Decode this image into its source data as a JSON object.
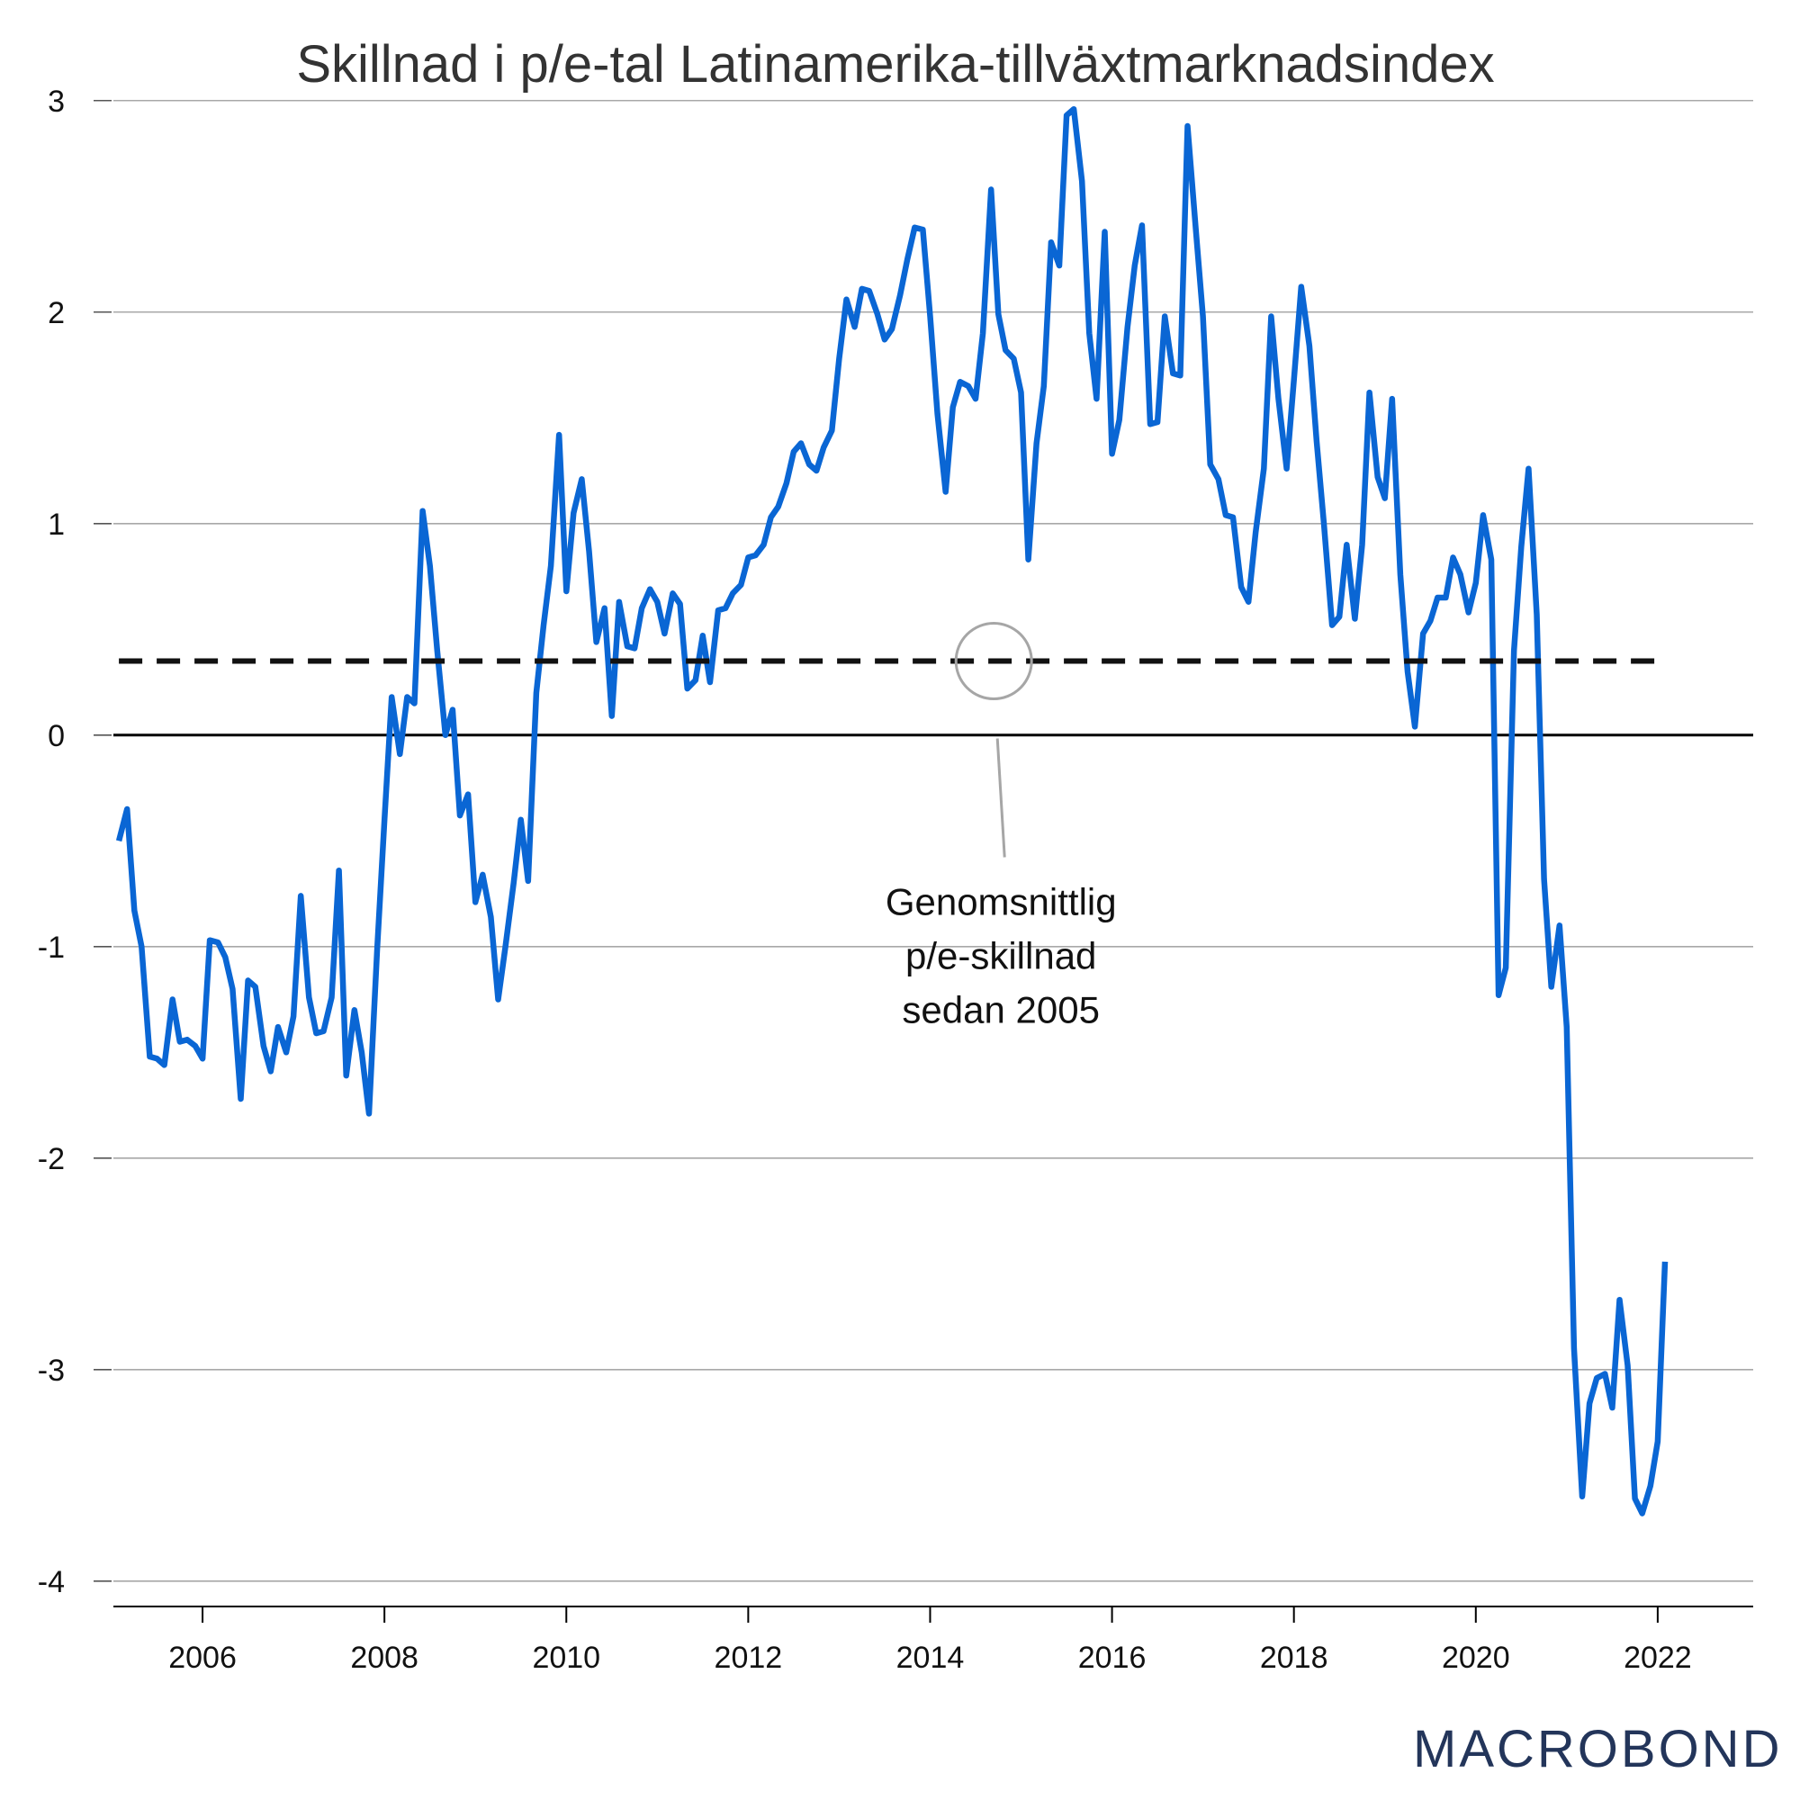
{
  "chart_data": {
    "type": "line",
    "title": "Skillnad i p/e-tal Latinamerika-tillväxtmarknadsindex",
    "xlabel": "",
    "ylabel": "",
    "xlim": [
      2005.0,
      2023.05
    ],
    "ylim": [
      -4.12,
      3.05
    ],
    "yticks": [
      3,
      2,
      1,
      0,
      -1,
      -2,
      -3,
      -4
    ],
    "ytick_labels": [
      "3",
      "2",
      "1",
      "0",
      "-1",
      "-2",
      "-3",
      "-4"
    ],
    "xticks": [
      2006,
      2008,
      2010,
      2012,
      2014,
      2016,
      2018,
      2020,
      2022
    ],
    "xtick_labels": [
      "2006",
      "2008",
      "2010",
      "2012",
      "2014",
      "2016",
      "2018",
      "2020",
      "2022"
    ],
    "grid": true,
    "zero_line": true,
    "series": [
      {
        "color": "#0a66d4",
        "points": [
          [
            2005.08,
            -0.5
          ],
          [
            2005.17,
            -0.35
          ],
          [
            2005.25,
            -0.83
          ],
          [
            2005.33,
            -1.0
          ],
          [
            2005.42,
            -1.52
          ],
          [
            2005.5,
            -1.53
          ],
          [
            2005.58,
            -1.56
          ],
          [
            2005.67,
            -1.25
          ],
          [
            2005.75,
            -1.45
          ],
          [
            2005.83,
            -1.44
          ],
          [
            2005.92,
            -1.47
          ],
          [
            2006.0,
            -1.53
          ],
          [
            2006.08,
            -0.97
          ],
          [
            2006.17,
            -0.98
          ],
          [
            2006.25,
            -1.05
          ],
          [
            2006.33,
            -1.2
          ],
          [
            2006.42,
            -1.72
          ],
          [
            2006.5,
            -1.16
          ],
          [
            2006.58,
            -1.19
          ],
          [
            2006.67,
            -1.47
          ],
          [
            2006.75,
            -1.59
          ],
          [
            2006.83,
            -1.38
          ],
          [
            2006.92,
            -1.5
          ],
          [
            2007.0,
            -1.33
          ],
          [
            2007.08,
            -0.76
          ],
          [
            2007.17,
            -1.24
          ],
          [
            2007.25,
            -1.41
          ],
          [
            2007.33,
            -1.4
          ],
          [
            2007.42,
            -1.24
          ],
          [
            2007.5,
            -0.64
          ],
          [
            2007.58,
            -1.61
          ],
          [
            2007.67,
            -1.3
          ],
          [
            2007.75,
            -1.5
          ],
          [
            2007.83,
            -1.79
          ],
          [
            2007.92,
            -1.01
          ],
          [
            2008.0,
            -0.4
          ],
          [
            2008.08,
            0.18
          ],
          [
            2008.17,
            -0.09
          ],
          [
            2008.25,
            0.18
          ],
          [
            2008.33,
            0.15
          ],
          [
            2008.42,
            1.06
          ],
          [
            2008.5,
            0.8
          ],
          [
            2008.58,
            0.4
          ],
          [
            2008.67,
            0.0
          ],
          [
            2008.75,
            0.12
          ],
          [
            2008.83,
            -0.38
          ],
          [
            2008.92,
            -0.28
          ],
          [
            2009.0,
            -0.79
          ],
          [
            2009.08,
            -0.66
          ],
          [
            2009.17,
            -0.86
          ],
          [
            2009.25,
            -1.25
          ],
          [
            2009.33,
            -1.0
          ],
          [
            2009.42,
            -0.7
          ],
          [
            2009.5,
            -0.4
          ],
          [
            2009.58,
            -0.69
          ],
          [
            2009.67,
            0.2
          ],
          [
            2009.75,
            0.52
          ],
          [
            2009.83,
            0.8
          ],
          [
            2009.92,
            1.42
          ],
          [
            2010.0,
            0.68
          ],
          [
            2010.08,
            1.05
          ],
          [
            2010.17,
            1.21
          ],
          [
            2010.25,
            0.87
          ],
          [
            2010.33,
            0.44
          ],
          [
            2010.42,
            0.6
          ],
          [
            2010.5,
            0.09
          ],
          [
            2010.58,
            0.63
          ],
          [
            2010.67,
            0.42
          ],
          [
            2010.75,
            0.41
          ],
          [
            2010.83,
            0.6
          ],
          [
            2010.92,
            0.69
          ],
          [
            2011.0,
            0.63
          ],
          [
            2011.08,
            0.48
          ],
          [
            2011.17,
            0.67
          ],
          [
            2011.25,
            0.62
          ],
          [
            2011.33,
            0.22
          ],
          [
            2011.42,
            0.26
          ],
          [
            2011.5,
            0.47
          ],
          [
            2011.58,
            0.25
          ],
          [
            2011.67,
            0.59
          ],
          [
            2011.75,
            0.6
          ],
          [
            2011.83,
            0.67
          ],
          [
            2011.92,
            0.71
          ],
          [
            2012.0,
            0.84
          ],
          [
            2012.08,
            0.85
          ],
          [
            2012.17,
            0.9
          ],
          [
            2012.25,
            1.03
          ],
          [
            2012.33,
            1.08
          ],
          [
            2012.42,
            1.19
          ],
          [
            2012.5,
            1.34
          ],
          [
            2012.58,
            1.38
          ],
          [
            2012.67,
            1.28
          ],
          [
            2012.75,
            1.25
          ],
          [
            2012.83,
            1.36
          ],
          [
            2012.92,
            1.44
          ],
          [
            2013.0,
            1.78
          ],
          [
            2013.08,
            2.06
          ],
          [
            2013.17,
            1.93
          ],
          [
            2013.25,
            2.11
          ],
          [
            2013.33,
            2.1
          ],
          [
            2013.42,
            1.99
          ],
          [
            2013.5,
            1.87
          ],
          [
            2013.58,
            1.92
          ],
          [
            2013.67,
            2.08
          ],
          [
            2013.75,
            2.25
          ],
          [
            2013.83,
            2.4
          ],
          [
            2013.92,
            2.39
          ],
          [
            2014.0,
            1.98
          ],
          [
            2014.08,
            1.52
          ],
          [
            2014.17,
            1.15
          ],
          [
            2014.25,
            1.55
          ],
          [
            2014.33,
            1.67
          ],
          [
            2014.42,
            1.65
          ],
          [
            2014.5,
            1.59
          ],
          [
            2014.58,
            1.9
          ],
          [
            2014.67,
            2.58
          ],
          [
            2014.75,
            1.99
          ],
          [
            2014.83,
            1.82
          ],
          [
            2014.92,
            1.78
          ],
          [
            2015.0,
            1.62
          ],
          [
            2015.08,
            0.83
          ],
          [
            2015.17,
            1.38
          ],
          [
            2015.25,
            1.65
          ],
          [
            2015.33,
            2.33
          ],
          [
            2015.42,
            2.22
          ],
          [
            2015.5,
            2.93
          ],
          [
            2015.58,
            2.96
          ],
          [
            2015.67,
            2.62
          ],
          [
            2015.75,
            1.9
          ],
          [
            2015.83,
            1.59
          ],
          [
            2015.92,
            2.38
          ],
          [
            2016.0,
            1.33
          ],
          [
            2016.08,
            1.49
          ],
          [
            2016.17,
            1.93
          ],
          [
            2016.25,
            2.22
          ],
          [
            2016.33,
            2.41
          ],
          [
            2016.42,
            1.47
          ],
          [
            2016.5,
            1.48
          ],
          [
            2016.58,
            1.98
          ],
          [
            2016.67,
            1.71
          ],
          [
            2016.75,
            1.7
          ],
          [
            2016.83,
            2.88
          ],
          [
            2016.92,
            2.4
          ],
          [
            2017.0,
            1.98
          ],
          [
            2017.08,
            1.28
          ],
          [
            2017.17,
            1.21
          ],
          [
            2017.25,
            1.04
          ],
          [
            2017.33,
            1.03
          ],
          [
            2017.42,
            0.7
          ],
          [
            2017.5,
            0.63
          ],
          [
            2017.58,
            0.96
          ],
          [
            2017.67,
            1.26
          ],
          [
            2017.75,
            1.98
          ],
          [
            2017.83,
            1.59
          ],
          [
            2017.92,
            1.26
          ],
          [
            2018.0,
            1.68
          ],
          [
            2018.08,
            2.12
          ],
          [
            2018.17,
            1.84
          ],
          [
            2018.25,
            1.39
          ],
          [
            2018.33,
            1.0
          ],
          [
            2018.42,
            0.52
          ],
          [
            2018.5,
            0.56
          ],
          [
            2018.58,
            0.9
          ],
          [
            2018.67,
            0.55
          ],
          [
            2018.75,
            0.9
          ],
          [
            2018.83,
            1.62
          ],
          [
            2018.92,
            1.22
          ],
          [
            2019.0,
            1.12
          ],
          [
            2019.08,
            1.59
          ],
          [
            2019.17,
            0.76
          ],
          [
            2019.25,
            0.3
          ],
          [
            2019.33,
            0.04
          ],
          [
            2019.42,
            0.48
          ],
          [
            2019.5,
            0.54
          ],
          [
            2019.58,
            0.65
          ],
          [
            2019.67,
            0.65
          ],
          [
            2019.75,
            0.84
          ],
          [
            2019.83,
            0.76
          ],
          [
            2019.92,
            0.58
          ],
          [
            2020.0,
            0.72
          ],
          [
            2020.08,
            1.04
          ],
          [
            2020.17,
            0.83
          ],
          [
            2020.25,
            -1.23
          ],
          [
            2020.33,
            -1.1
          ],
          [
            2020.42,
            0.4
          ],
          [
            2020.5,
            0.89
          ],
          [
            2020.58,
            1.26
          ],
          [
            2020.67,
            0.57
          ],
          [
            2020.75,
            -0.68
          ],
          [
            2020.83,
            -1.19
          ],
          [
            2020.92,
            -0.9
          ],
          [
            2021.0,
            -1.38
          ],
          [
            2021.08,
            -2.9
          ],
          [
            2021.17,
            -3.6
          ],
          [
            2021.25,
            -3.16
          ],
          [
            2021.33,
            -3.04
          ],
          [
            2021.42,
            -3.02
          ],
          [
            2021.5,
            -3.18
          ],
          [
            2021.58,
            -2.67
          ],
          [
            2021.67,
            -2.98
          ],
          [
            2021.75,
            -3.61
          ],
          [
            2021.83,
            -3.68
          ],
          [
            2021.92,
            -3.55
          ],
          [
            2022.0,
            -3.34
          ],
          [
            2022.08,
            -2.49
          ]
        ]
      },
      {
        "color": "#111111",
        "dashed": true,
        "points": [
          [
            2005.08,
            0.35
          ],
          [
            2022.08,
            0.35
          ]
        ]
      }
    ],
    "annotations": [
      {
        "text": [
          "Genomsnittlig",
          "p/e-skillnad",
          "sedan 2005"
        ],
        "x": 2014.7,
        "y": 0.35
      }
    ]
  },
  "logo": {
    "text": "MACROBOND"
  }
}
